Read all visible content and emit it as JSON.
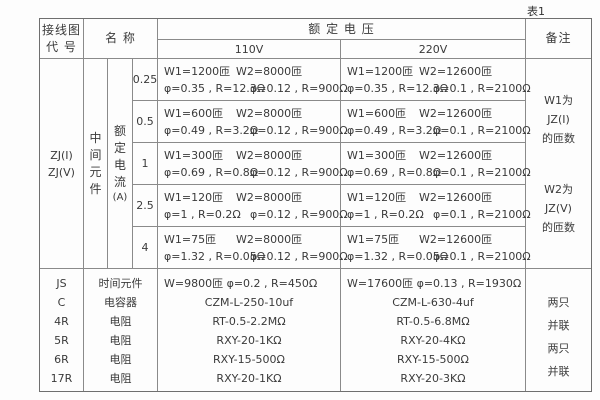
{
  "table_label": "表1",
  "header": {
    "code_line1": "接线图",
    "code_line2": "代  号",
    "name": "名 称",
    "rated_voltage": "额 定 电 压",
    "v110": "110V",
    "v220": "220V",
    "remark": "备注"
  },
  "main": {
    "code_line1": "ZJ(I)",
    "code_line2": "ZJ(V)",
    "element_label": "中间元件",
    "current_label": "额定电流",
    "current_unit": "(A)",
    "rows": [
      {
        "current": "0.25",
        "v110": {
          "w1": "W1=1200匝",
          "w2": "W2=8000匝",
          "p1": "φ=0.35 , R=12.3Ω",
          "p2": "φ=0.12 , R=900Ω"
        },
        "v220": {
          "w1": "W1=1200匝",
          "w2": "W2=12600匝",
          "p1": "φ=0.35 , R=12.3Ω",
          "p2": "φ=0.1 , R=2100Ω"
        }
      },
      {
        "current": "0.5",
        "v110": {
          "w1": "W1=600匝",
          "w2": "W2=8000匝",
          "p1": "φ=0.49 , R=3.2Ω",
          "p2": "φ=0.12 , R=900Ω"
        },
        "v220": {
          "w1": "W1=600匝",
          "w2": "W2=12600匝",
          "p1": "φ=0.49 , R=3.2Ω",
          "p2": "φ=0.1 , R=2100Ω"
        }
      },
      {
        "current": "1",
        "v110": {
          "w1": "W1=300匝",
          "w2": "W2=8000匝",
          "p1": "φ=0.69 , R=0.8Ω",
          "p2": "φ=0.12 , R=900Ω"
        },
        "v220": {
          "w1": "W1=300匝",
          "w2": "W2=12600匝",
          "p1": "φ=0.69 , R=0.8Ω",
          "p2": "φ=0.1 , R=2100Ω"
        }
      },
      {
        "current": "2.5",
        "v110": {
          "w1": "W1=120匝",
          "w2": "W2=8000匝",
          "p1": "φ=1 , R=0.2Ω",
          "p2": "φ=0.12 , R=900Ω"
        },
        "v220": {
          "w1": "W1=120匝",
          "w2": "W2=12600匝",
          "p1": "φ=1 , R=0.2Ω",
          "p2": "φ=0.1 , R=2100Ω"
        }
      },
      {
        "current": "4",
        "v110": {
          "w1": "W1=75匝",
          "w2": "W2=8000匝",
          "p1": "φ=1.32 , R=0.05Ω",
          "p2": "φ=0.12 , R=900Ω"
        },
        "v220": {
          "w1": "W1=75匝",
          "w2": "W2=12600匝",
          "p1": "φ=1.32 , R=0.05Ω",
          "p2": "φ=0.1 , R=2100Ω"
        }
      }
    ],
    "remark_block1": [
      "W1为",
      "JZ(I)",
      "的匝数"
    ],
    "remark_block2": [
      "W2为",
      "JZ(V)",
      "的匝数"
    ]
  },
  "bottom": {
    "rows": [
      {
        "code": "JS",
        "name": "时间元件",
        "v110": "W=9800匝  φ=0.2 , R=450Ω",
        "v220": "W=17600匝  φ=0.13 , R=1930Ω"
      },
      {
        "code": "C",
        "name": "电容器",
        "v110": "CZM-L-250-10uf",
        "v220": "CZM-L-630-4uf"
      },
      {
        "code": "4R",
        "name": "电阻",
        "v110": "RT-0.5-2.2MΩ",
        "v220": "RT-0.5-6.8MΩ"
      },
      {
        "code": "5R",
        "name": "电阻",
        "v110": "RXY-20-1KΩ",
        "v220": "RXY-20-4KΩ"
      },
      {
        "code": "6R",
        "name": "电阻",
        "v110": "RXY-15-500Ω",
        "v220": "RXY-15-500Ω"
      },
      {
        "code": "17R",
        "name": "电阻",
        "v110": "RXY-20-1KΩ",
        "v220": "RXY-20-3KΩ"
      }
    ],
    "remarks": [
      "两只",
      "并联",
      "两只",
      "并联"
    ]
  }
}
